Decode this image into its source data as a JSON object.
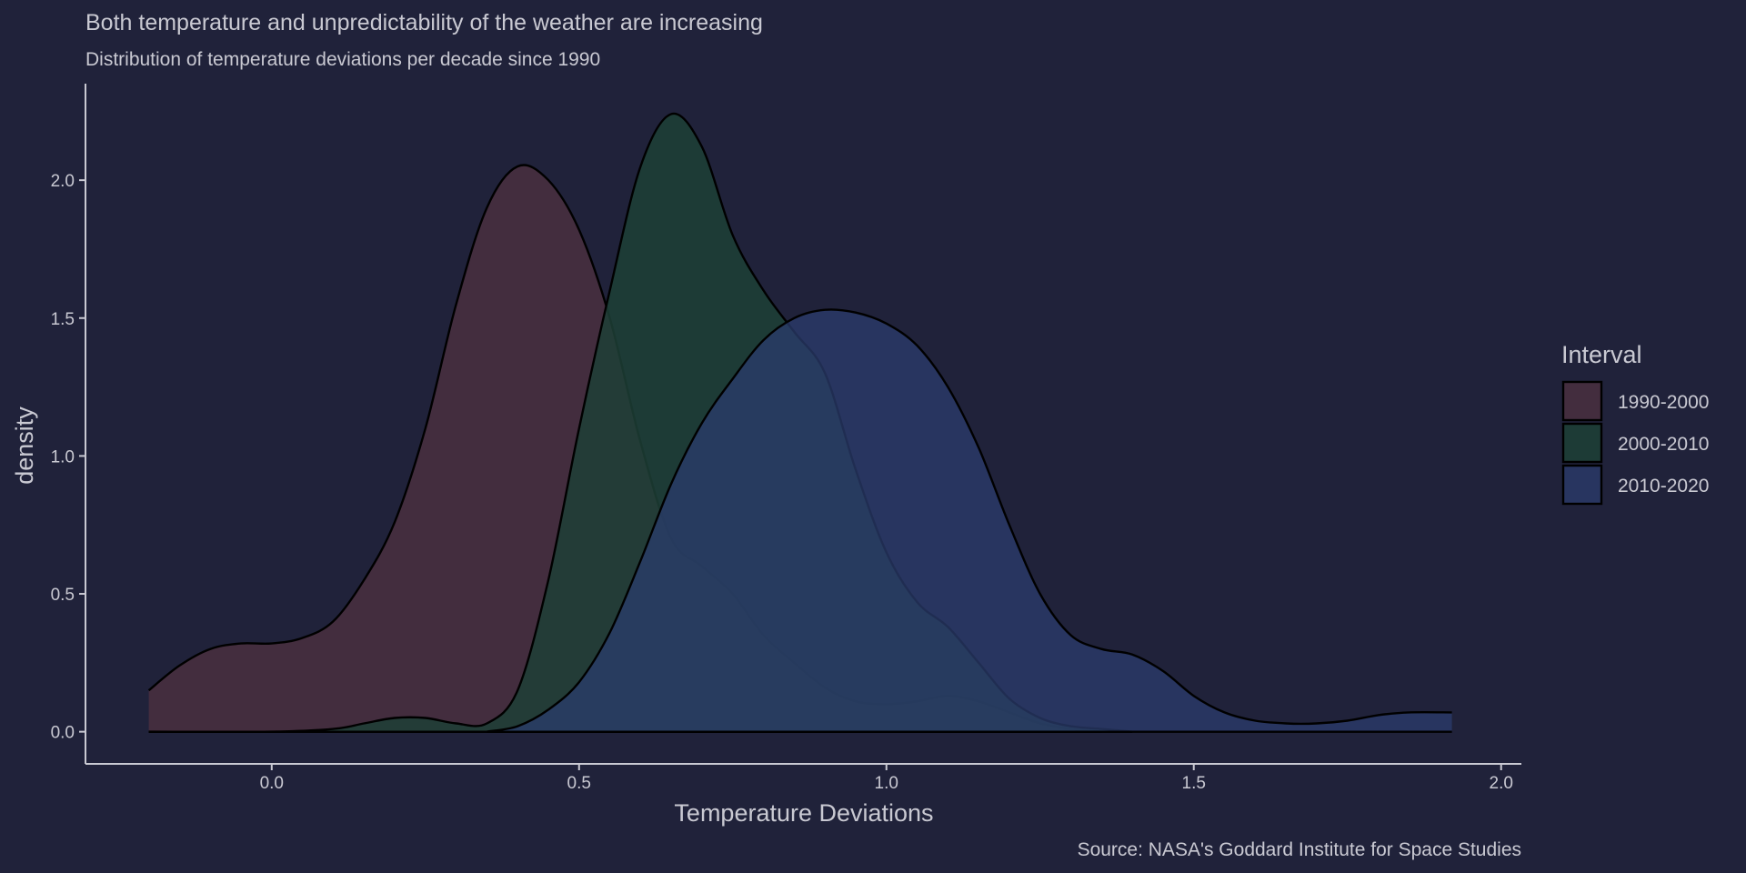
{
  "colors": {
    "background": "#20223a",
    "text": "#c9c9d2",
    "outline": "#000000"
  },
  "chart_data": {
    "type": "area",
    "subtype": "density",
    "title": "Both temperature and unpredictability of the weather are increasing",
    "subtitle": "Distribution of temperature deviations per decade since 1990",
    "xlabel": "Temperature Deviations",
    "ylabel": "density",
    "caption": "Source: NASA's Goddard Institute for Space Studies",
    "xlim": [
      -0.3,
      2.03
    ],
    "ylim": [
      -0.11,
      2.35
    ],
    "xticks": [
      0.0,
      0.5,
      1.0,
      1.5,
      2.0
    ],
    "xtick_labels": [
      "0.0",
      "0.5",
      "1.0",
      "1.5",
      "2.0"
    ],
    "yticks": [
      0.0,
      0.5,
      1.0,
      1.5,
      2.0
    ],
    "ytick_labels": [
      "0.0",
      "0.5",
      "1.0",
      "1.5",
      "2.0"
    ],
    "grid": false,
    "legend": {
      "title": "Interval",
      "position": "right"
    },
    "series": [
      {
        "name": "1990-2000",
        "color": "#4a2f3f",
        "opacity": 0.85,
        "points": [
          [
            -0.2,
            0.15
          ],
          [
            -0.15,
            0.24
          ],
          [
            -0.1,
            0.3
          ],
          [
            -0.05,
            0.32
          ],
          [
            0.0,
            0.32
          ],
          [
            0.05,
            0.34
          ],
          [
            0.1,
            0.4
          ],
          [
            0.15,
            0.55
          ],
          [
            0.2,
            0.76
          ],
          [
            0.25,
            1.1
          ],
          [
            0.3,
            1.55
          ],
          [
            0.35,
            1.9
          ],
          [
            0.4,
            2.05
          ],
          [
            0.45,
            2.0
          ],
          [
            0.5,
            1.82
          ],
          [
            0.55,
            1.5
          ],
          [
            0.6,
            1.05
          ],
          [
            0.65,
            0.7
          ],
          [
            0.7,
            0.6
          ],
          [
            0.75,
            0.5
          ],
          [
            0.8,
            0.35
          ],
          [
            0.85,
            0.25
          ],
          [
            0.9,
            0.16
          ],
          [
            0.95,
            0.11
          ],
          [
            1.0,
            0.1
          ],
          [
            1.05,
            0.11
          ],
          [
            1.1,
            0.13
          ],
          [
            1.15,
            0.11
          ],
          [
            1.2,
            0.07
          ],
          [
            1.25,
            0.03
          ],
          [
            1.3,
            0.01
          ],
          [
            1.35,
            0.0
          ]
        ]
      },
      {
        "name": "2000-2010",
        "color": "#1d3f36",
        "opacity": 0.85,
        "points": [
          [
            -0.2,
            0.0
          ],
          [
            0.0,
            0.0
          ],
          [
            0.1,
            0.01
          ],
          [
            0.15,
            0.03
          ],
          [
            0.2,
            0.05
          ],
          [
            0.25,
            0.05
          ],
          [
            0.3,
            0.03
          ],
          [
            0.35,
            0.03
          ],
          [
            0.4,
            0.15
          ],
          [
            0.45,
            0.55
          ],
          [
            0.5,
            1.1
          ],
          [
            0.55,
            1.6
          ],
          [
            0.6,
            2.05
          ],
          [
            0.65,
            2.24
          ],
          [
            0.7,
            2.12
          ],
          [
            0.75,
            1.8
          ],
          [
            0.8,
            1.6
          ],
          [
            0.85,
            1.45
          ],
          [
            0.9,
            1.3
          ],
          [
            0.95,
            0.95
          ],
          [
            1.0,
            0.65
          ],
          [
            1.05,
            0.47
          ],
          [
            1.1,
            0.38
          ],
          [
            1.15,
            0.25
          ],
          [
            1.2,
            0.12
          ],
          [
            1.25,
            0.05
          ],
          [
            1.3,
            0.02
          ],
          [
            1.35,
            0.01
          ],
          [
            1.4,
            0.0
          ]
        ]
      },
      {
        "name": "2010-2020",
        "color": "#2b3c6e",
        "opacity": 0.75,
        "points": [
          [
            0.35,
            0.0
          ],
          [
            0.4,
            0.02
          ],
          [
            0.45,
            0.08
          ],
          [
            0.5,
            0.18
          ],
          [
            0.55,
            0.36
          ],
          [
            0.6,
            0.62
          ],
          [
            0.65,
            0.9
          ],
          [
            0.7,
            1.12
          ],
          [
            0.75,
            1.28
          ],
          [
            0.8,
            1.42
          ],
          [
            0.85,
            1.5
          ],
          [
            0.9,
            1.53
          ],
          [
            0.95,
            1.52
          ],
          [
            1.0,
            1.48
          ],
          [
            1.05,
            1.4
          ],
          [
            1.1,
            1.25
          ],
          [
            1.15,
            1.03
          ],
          [
            1.2,
            0.75
          ],
          [
            1.25,
            0.5
          ],
          [
            1.3,
            0.35
          ],
          [
            1.35,
            0.3
          ],
          [
            1.4,
            0.28
          ],
          [
            1.45,
            0.22
          ],
          [
            1.5,
            0.13
          ],
          [
            1.55,
            0.07
          ],
          [
            1.6,
            0.04
          ],
          [
            1.65,
            0.03
          ],
          [
            1.7,
            0.03
          ],
          [
            1.75,
            0.04
          ],
          [
            1.8,
            0.06
          ],
          [
            1.85,
            0.07
          ],
          [
            1.92,
            0.07
          ]
        ]
      }
    ]
  }
}
